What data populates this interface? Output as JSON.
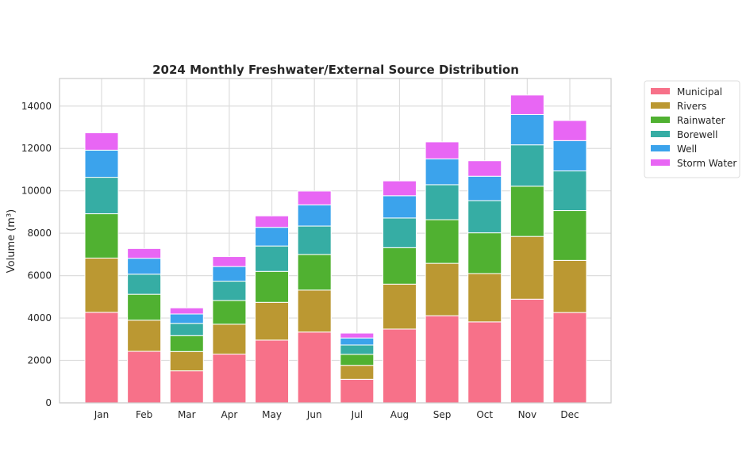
{
  "chart_data": {
    "type": "bar",
    "stacked": true,
    "title": "2024 Monthly Freshwater/External Source Distribution",
    "xlabel": "",
    "ylabel": "Volume (m³)",
    "ylim": [
      0,
      15300
    ],
    "yticks": [
      0,
      2000,
      4000,
      6000,
      8000,
      10000,
      12000,
      14000
    ],
    "ytick_labels": [
      "0",
      "2000",
      "4000",
      "6000",
      "8000",
      "10000",
      "12000",
      "14000"
    ],
    "grid": true,
    "legend_position": "outside-top-right",
    "categories": [
      "Jan",
      "Feb",
      "Mar",
      "Apr",
      "May",
      "Jun",
      "Jul",
      "Aug",
      "Sep",
      "Oct",
      "Nov",
      "Dec"
    ],
    "series": [
      {
        "name": "Municipal",
        "color": "#f77189",
        "values": [
          4270,
          2430,
          1510,
          2300,
          2960,
          3340,
          1110,
          3480,
          4110,
          3820,
          4890,
          4260
        ]
      },
      {
        "name": "Rivers",
        "color": "#bb9832",
        "values": [
          2560,
          1470,
          910,
          1410,
          1780,
          1980,
          660,
          2120,
          2470,
          2280,
          2960,
          2460
        ]
      },
      {
        "name": "Rainwater",
        "color": "#50b131",
        "values": [
          2090,
          1220,
          750,
          1120,
          1460,
          1680,
          520,
          1720,
          2060,
          1920,
          2370,
          2350
        ]
      },
      {
        "name": "Borewell",
        "color": "#36ada4",
        "values": [
          1720,
          950,
          580,
          910,
          1200,
          1340,
          440,
          1400,
          1650,
          1520,
          1950,
          1870
        ]
      },
      {
        "name": "Well",
        "color": "#3ba3ec",
        "values": [
          1280,
          750,
          440,
          690,
          880,
          1000,
          330,
          1050,
          1220,
          1150,
          1430,
          1430
        ]
      },
      {
        "name": "Storm Water",
        "color": "#e866f4",
        "values": [
          820,
          460,
          290,
          470,
          540,
          650,
          230,
          700,
          800,
          730,
          920,
          950
        ]
      }
    ]
  }
}
